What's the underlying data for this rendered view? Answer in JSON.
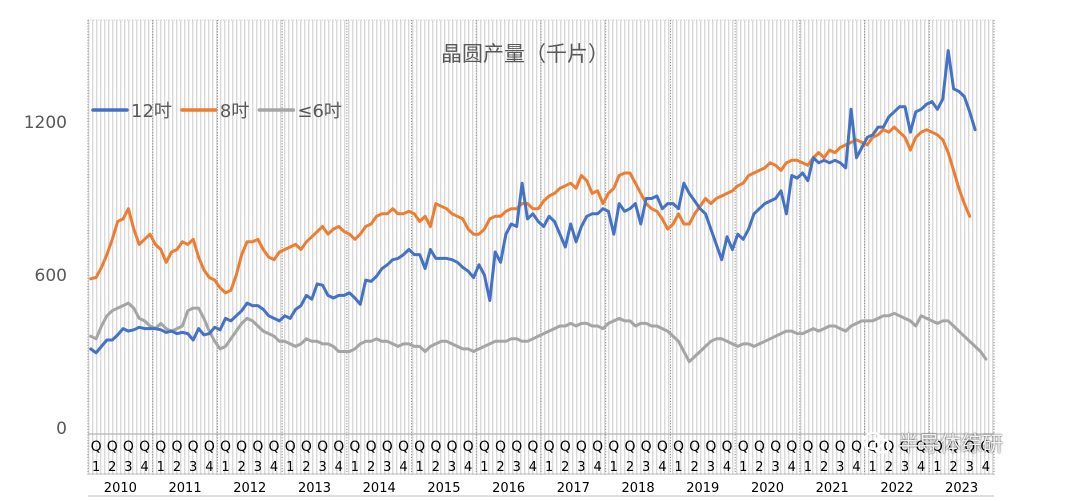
{
  "chart_data": {
    "type": "line",
    "title": "晶圆产量（千片）",
    "ylim": [
      0,
      1600
    ],
    "yticks": [
      "0",
      "600",
      "1200"
    ],
    "ytick_values": [
      0,
      600,
      1200
    ],
    "grid": true,
    "legend_position": "top-left",
    "years": [
      "2010",
      "2011",
      "2012",
      "2013",
      "2014",
      "2015",
      "2016",
      "2017",
      "2018",
      "2019",
      "2020",
      "2021",
      "2022",
      "2023"
    ],
    "quarter_letter": "Q",
    "quarters": [
      "1",
      "2",
      "3",
      "4"
    ],
    "months_per_year": 12,
    "series": [
      {
        "name": "12吋",
        "color": "#4472C4",
        "values": [
          310,
          295,
          320,
          345,
          345,
          365,
          390,
          380,
          385,
          395,
          390,
          390,
          390,
          385,
          375,
          380,
          370,
          375,
          370,
          345,
          390,
          365,
          370,
          395,
          385,
          430,
          420,
          440,
          460,
          490,
          480,
          480,
          465,
          440,
          430,
          420,
          440,
          430,
          465,
          480,
          520,
          505,
          565,
          560,
          520,
          510,
          520,
          520,
          530,
          510,
          485,
          580,
          575,
          595,
          625,
          640,
          660,
          665,
          680,
          700,
          680,
          680,
          625,
          700,
          665,
          665,
          665,
          660,
          650,
          630,
          615,
          590,
          640,
          600,
          500,
          690,
          650,
          760,
          800,
          790,
          960,
          820,
          840,
          810,
          790,
          830,
          810,
          760,
          710,
          800,
          730,
          790,
          830,
          840,
          840,
          860,
          850,
          760,
          880,
          850,
          860,
          880,
          800,
          900,
          900,
          910,
          860,
          880,
          880,
          860,
          960,
          920,
          890,
          860,
          840,
          780,
          720,
          660,
          750,
          700,
          760,
          740,
          780,
          840,
          860,
          880,
          890,
          900,
          930,
          840,
          990,
          980,
          1000,
          970,
          1060,
          1040,
          1050,
          1040,
          1050,
          1040,
          1020,
          1250,
          1060,
          1100,
          1140,
          1150,
          1180,
          1180,
          1220,
          1240,
          1260,
          1260,
          1160,
          1240,
          1250,
          1270,
          1280,
          1250,
          1290,
          1480,
          1330,
          1320,
          1300,
          1240,
          1170
        ]
      },
      {
        "name": "8吋",
        "color": "#ED7D31",
        "values": [
          585,
          590,
          630,
          680,
          740,
          810,
          820,
          860,
          780,
          720,
          740,
          760,
          720,
          700,
          650,
          690,
          700,
          730,
          720,
          740,
          670,
          620,
          590,
          580,
          550,
          530,
          540,
          600,
          680,
          730,
          730,
          740,
          700,
          670,
          660,
          690,
          700,
          710,
          720,
          700,
          730,
          750,
          770,
          790,
          760,
          780,
          790,
          770,
          760,
          740,
          760,
          790,
          800,
          830,
          840,
          840,
          860,
          840,
          840,
          850,
          840,
          810,
          830,
          790,
          880,
          870,
          860,
          840,
          830,
          820,
          780,
          760,
          760,
          780,
          820,
          830,
          830,
          850,
          860,
          860,
          880,
          880,
          860,
          860,
          890,
          910,
          920,
          940,
          950,
          960,
          940,
          990,
          970,
          920,
          930,
          880,
          920,
          940,
          990,
          1000,
          1000,
          960,
          920,
          880,
          860,
          850,
          820,
          780,
          800,
          840,
          800,
          800,
          840,
          870,
          900,
          880,
          900,
          910,
          920,
          930,
          950,
          960,
          990,
          1000,
          1010,
          1020,
          1040,
          1030,
          1010,
          1040,
          1050,
          1050,
          1040,
          1030,
          1060,
          1080,
          1060,
          1090,
          1080,
          1100,
          1110,
          1120,
          1130,
          1120,
          1110,
          1140,
          1150,
          1170,
          1160,
          1180,
          1160,
          1140,
          1090,
          1140,
          1160,
          1170,
          1160,
          1150,
          1130,
          1080,
          1010,
          940,
          880,
          830
        ]
      },
      {
        "name": "≤6吋",
        "color": "#A5A5A5",
        "values": [
          360,
          350,
          400,
          440,
          460,
          470,
          480,
          490,
          470,
          430,
          420,
          400,
          390,
          410,
          390,
          380,
          390,
          400,
          460,
          470,
          470,
          430,
          380,
          340,
          310,
          320,
          350,
          380,
          410,
          430,
          420,
          400,
          380,
          370,
          360,
          340,
          340,
          330,
          320,
          330,
          350,
          340,
          340,
          330,
          330,
          320,
          300,
          300,
          300,
          310,
          330,
          340,
          340,
          350,
          340,
          340,
          330,
          320,
          330,
          330,
          320,
          320,
          300,
          320,
          330,
          340,
          340,
          330,
          320,
          310,
          310,
          300,
          310,
          320,
          330,
          340,
          340,
          340,
          350,
          350,
          340,
          340,
          350,
          360,
          370,
          380,
          390,
          400,
          400,
          410,
          400,
          410,
          410,
          400,
          400,
          390,
          410,
          420,
          430,
          420,
          420,
          400,
          410,
          410,
          400,
          400,
          390,
          380,
          360,
          340,
          300,
          260,
          280,
          300,
          320,
          340,
          350,
          350,
          340,
          330,
          320,
          330,
          330,
          320,
          330,
          340,
          350,
          360,
          370,
          380,
          380,
          370,
          370,
          380,
          390,
          380,
          390,
          400,
          400,
          390,
          380,
          400,
          410,
          420,
          420,
          420,
          430,
          440,
          440,
          450,
          440,
          430,
          420,
          400,
          440,
          430,
          420,
          410,
          420,
          420,
          400,
          380,
          360,
          340,
          320,
          300,
          270
        ]
      }
    ]
  },
  "watermark": {
    "text": "半导体综研"
  }
}
